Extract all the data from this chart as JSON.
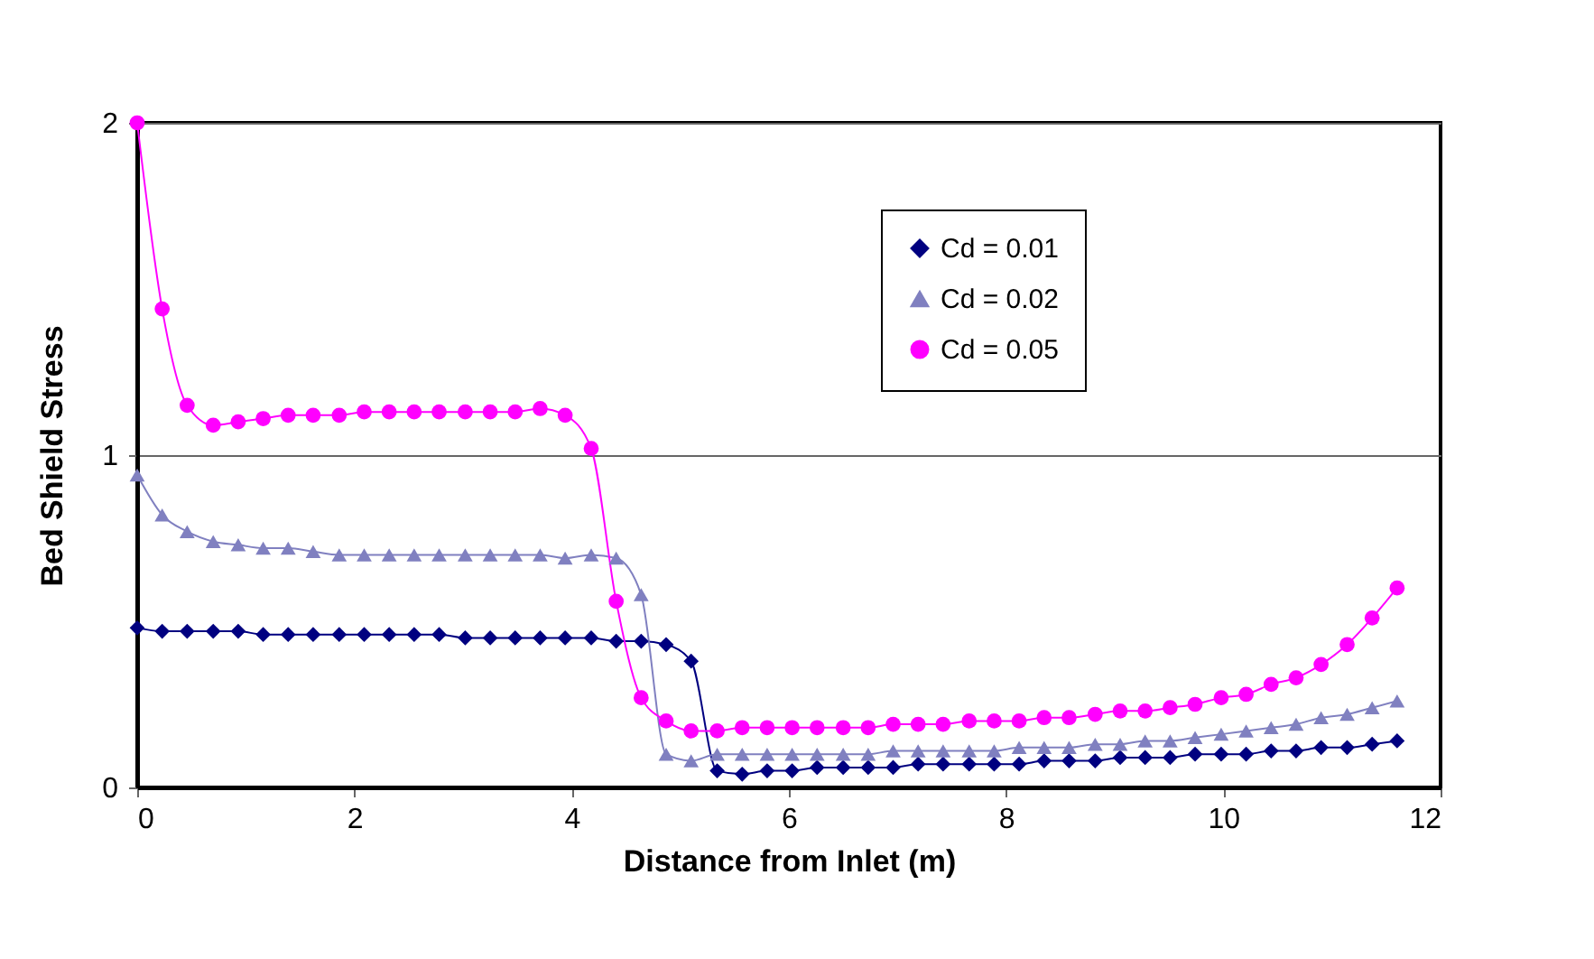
{
  "chart_data": {
    "type": "line",
    "xlabel": "Distance from Inlet (m)",
    "ylabel": "Bed Shield Stress",
    "x": [
      0,
      0.23,
      0.46,
      0.7,
      0.93,
      1.16,
      1.39,
      1.62,
      1.86,
      2.09,
      2.32,
      2.55,
      2.78,
      3.02,
      3.25,
      3.48,
      3.71,
      3.94,
      4.18,
      4.41,
      4.64,
      4.87,
      5.1,
      5.34,
      5.57,
      5.8,
      6.03,
      6.26,
      6.5,
      6.73,
      6.96,
      7.19,
      7.42,
      7.66,
      7.89,
      8.12,
      8.35,
      8.58,
      8.82,
      9.05,
      9.28,
      9.51,
      9.74,
      9.98,
      10.21,
      10.44,
      10.67,
      10.9,
      11.14,
      11.37,
      11.6
    ],
    "series": [
      {
        "name": "Cd = 0.01",
        "color": "#000080",
        "marker": "diamond",
        "values": [
          0.48,
          0.47,
          0.47,
          0.47,
          0.47,
          0.46,
          0.46,
          0.46,
          0.46,
          0.46,
          0.46,
          0.46,
          0.46,
          0.45,
          0.45,
          0.45,
          0.45,
          0.45,
          0.45,
          0.44,
          0.44,
          0.43,
          0.38,
          0.05,
          0.04,
          0.05,
          0.05,
          0.06,
          0.06,
          0.06,
          0.06,
          0.07,
          0.07,
          0.07,
          0.07,
          0.07,
          0.08,
          0.08,
          0.08,
          0.09,
          0.09,
          0.09,
          0.1,
          0.1,
          0.1,
          0.11,
          0.11,
          0.12,
          0.12,
          0.13,
          0.14
        ]
      },
      {
        "name": "Cd = 0.02",
        "color": "#8080c0",
        "marker": "triangle",
        "values": [
          0.94,
          0.82,
          0.77,
          0.74,
          0.73,
          0.72,
          0.72,
          0.71,
          0.7,
          0.7,
          0.7,
          0.7,
          0.7,
          0.7,
          0.7,
          0.7,
          0.7,
          0.69,
          0.7,
          0.69,
          0.58,
          0.1,
          0.08,
          0.1,
          0.1,
          0.1,
          0.1,
          0.1,
          0.1,
          0.1,
          0.11,
          0.11,
          0.11,
          0.11,
          0.11,
          0.12,
          0.12,
          0.12,
          0.13,
          0.13,
          0.14,
          0.14,
          0.15,
          0.16,
          0.17,
          0.18,
          0.19,
          0.21,
          0.22,
          0.24,
          0.26
        ]
      },
      {
        "name": "Cd = 0.05",
        "color": "#ff00ff",
        "marker": "circle",
        "values": [
          2.0,
          1.44,
          1.15,
          1.09,
          1.1,
          1.11,
          1.12,
          1.12,
          1.12,
          1.13,
          1.13,
          1.13,
          1.13,
          1.13,
          1.13,
          1.13,
          1.14,
          1.12,
          1.02,
          0.56,
          0.27,
          0.2,
          0.17,
          0.17,
          0.18,
          0.18,
          0.18,
          0.18,
          0.18,
          0.18,
          0.19,
          0.19,
          0.19,
          0.2,
          0.2,
          0.2,
          0.21,
          0.21,
          0.22,
          0.23,
          0.23,
          0.24,
          0.25,
          0.27,
          0.28,
          0.31,
          0.33,
          0.37,
          0.43,
          0.51,
          0.6
        ]
      }
    ],
    "xlim": [
      0,
      12
    ],
    "xticks": [
      0,
      2,
      4,
      6,
      8,
      10,
      12
    ],
    "ylim": [
      0,
      2
    ],
    "yticks": [
      0,
      1,
      2
    ],
    "grid": "y",
    "legend": "top right",
    "line_style": "solid"
  }
}
